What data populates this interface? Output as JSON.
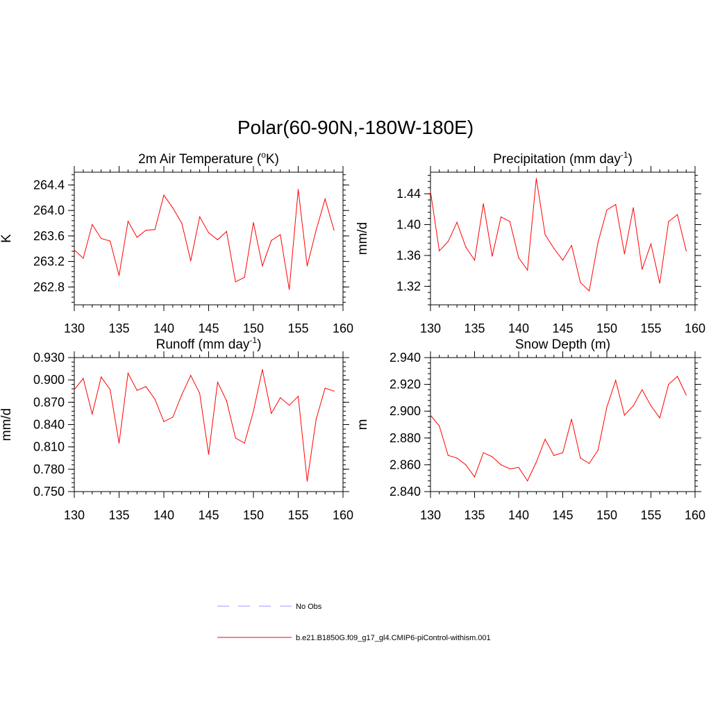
{
  "figure": {
    "title": "Polar(60-90N,-180W-180E)"
  },
  "chart_data": [
    {
      "type": "line",
      "title": "2m Air Temperature (",
      "title_sup": "o",
      "title_tail": "K)",
      "ylabel": "K",
      "xlabel": "",
      "xlim": [
        130,
        160
      ],
      "ylim": [
        262.52,
        264.6
      ],
      "x_ticks": [
        "130",
        "135",
        "140",
        "145",
        "150",
        "155",
        "160"
      ],
      "y_ticks": [
        262.8,
        263.2,
        263.6,
        264.0,
        264.4
      ],
      "y_tick_labels": [
        "262.8",
        "263.2",
        "263.6",
        "264.0",
        "264.4"
      ],
      "y_minor_step": 0.08,
      "grid": false,
      "series": [
        {
          "name": "b.e21.B1850G.f09_g17_gl4.CMIP6-piControl-withism.001",
          "color": "#ff0000",
          "x": [
            130,
            131,
            132,
            133,
            134,
            135,
            136,
            137,
            138,
            139,
            140,
            141,
            142,
            143,
            144,
            145,
            146,
            147,
            148,
            149,
            150,
            151,
            152,
            153,
            154,
            155,
            156,
            157,
            158,
            159
          ],
          "y": [
            263.38,
            263.25,
            263.78,
            263.56,
            263.52,
            262.98,
            263.83,
            263.58,
            263.69,
            263.7,
            264.24,
            264.04,
            263.8,
            263.21,
            263.9,
            263.65,
            263.54,
            263.67,
            262.88,
            262.95,
            263.81,
            263.13,
            263.53,
            263.62,
            262.76,
            264.33,
            263.13,
            263.69,
            264.18,
            263.69
          ]
        }
      ]
    },
    {
      "type": "line",
      "title": "Precipitation (mm day",
      "title_sup": "-1",
      "title_tail": ")",
      "ylabel": "mm/d",
      "xlabel": "",
      "xlim": [
        130,
        160
      ],
      "ylim": [
        1.296,
        1.468
      ],
      "x_ticks": [
        "130",
        "135",
        "140",
        "145",
        "150",
        "155",
        "160"
      ],
      "y_ticks": [
        1.32,
        1.36,
        1.4,
        1.44
      ],
      "y_tick_labels": [
        "1.32",
        "1.36",
        "1.40",
        "1.44"
      ],
      "y_minor_step": 0.008,
      "grid": false,
      "series": [
        {
          "name": "b.e21.B1850G.f09_g17_gl4.CMIP6-piControl-withism.001",
          "color": "#ff0000",
          "x": [
            130,
            131,
            132,
            133,
            134,
            135,
            136,
            137,
            138,
            139,
            140,
            141,
            142,
            143,
            144,
            145,
            146,
            147,
            148,
            149,
            150,
            151,
            152,
            153,
            154,
            155,
            156,
            157,
            158,
            159
          ],
          "y": [
            1.443,
            1.366,
            1.378,
            1.403,
            1.371,
            1.354,
            1.427,
            1.359,
            1.41,
            1.404,
            1.357,
            1.341,
            1.46,
            1.387,
            1.369,
            1.354,
            1.373,
            1.325,
            1.314,
            1.377,
            1.419,
            1.426,
            1.362,
            1.422,
            1.342,
            1.375,
            1.324,
            1.404,
            1.413,
            1.366
          ]
        }
      ]
    },
    {
      "type": "line",
      "title": "Runoff (mm day",
      "title_sup": "-1",
      "title_tail": ")",
      "ylabel": "mm/d",
      "xlabel": "",
      "xlim": [
        130,
        160
      ],
      "ylim": [
        0.75,
        0.93
      ],
      "x_ticks": [
        "130",
        "135",
        "140",
        "145",
        "150",
        "155",
        "160"
      ],
      "y_ticks": [
        0.75,
        0.78,
        0.81,
        0.84,
        0.87,
        0.9,
        0.93
      ],
      "y_tick_labels": [
        "0.750",
        "0.780",
        "0.810",
        "0.840",
        "0.870",
        "0.900",
        "0.930"
      ],
      "y_minor_step": 0.006,
      "grid": false,
      "series": [
        {
          "name": "b.e21.B1850G.f09_g17_gl4.CMIP6-piControl-withism.001",
          "color": "#ff0000",
          "x": [
            130,
            131,
            132,
            133,
            134,
            135,
            136,
            137,
            138,
            139,
            140,
            141,
            142,
            143,
            144,
            145,
            146,
            147,
            148,
            149,
            150,
            151,
            152,
            153,
            154,
            155,
            156,
            157,
            158,
            159
          ],
          "y": [
            0.887,
            0.902,
            0.854,
            0.904,
            0.887,
            0.815,
            0.909,
            0.886,
            0.891,
            0.874,
            0.844,
            0.85,
            0.88,
            0.906,
            0.882,
            0.8,
            0.897,
            0.872,
            0.822,
            0.815,
            0.858,
            0.914,
            0.855,
            0.876,
            0.866,
            0.878,
            0.764,
            0.847,
            0.889,
            0.885
          ]
        }
      ]
    },
    {
      "type": "line",
      "title": "Snow Depth (m)",
      "title_sup": "",
      "title_tail": "",
      "ylabel": "m",
      "xlabel": "",
      "xlim": [
        130,
        160
      ],
      "ylim": [
        2.84,
        2.94
      ],
      "x_ticks": [
        "130",
        "135",
        "140",
        "145",
        "150",
        "155",
        "160"
      ],
      "y_ticks": [
        2.84,
        2.86,
        2.88,
        2.9,
        2.92,
        2.94
      ],
      "y_tick_labels": [
        "2.840",
        "2.860",
        "2.880",
        "2.900",
        "2.920",
        "2.940"
      ],
      "y_minor_step": 0.004,
      "grid": false,
      "series": [
        {
          "name": "b.e21.B1850G.f09_g17_gl4.CMIP6-piControl-withism.001",
          "color": "#ff0000",
          "x": [
            130,
            131,
            132,
            133,
            134,
            135,
            136,
            137,
            138,
            139,
            140,
            141,
            142,
            143,
            144,
            145,
            146,
            147,
            148,
            149,
            150,
            151,
            152,
            153,
            154,
            155,
            156,
            157,
            158,
            159
          ],
          "y": [
            2.897,
            2.889,
            2.867,
            2.865,
            2.86,
            2.851,
            2.869,
            2.866,
            2.86,
            2.857,
            2.858,
            2.848,
            2.862,
            2.879,
            2.867,
            2.869,
            2.894,
            2.865,
            2.861,
            2.871,
            2.903,
            2.923,
            2.897,
            2.904,
            2.916,
            2.904,
            2.895,
            2.92,
            2.926,
            2.912
          ]
        }
      ]
    }
  ],
  "legend": {
    "items": [
      {
        "label": "No Obs",
        "color": "#9999ff",
        "style": "dashed"
      },
      {
        "label": "b.e21.B1850G.f09_g17_gl4.CMIP6-piControl-withism.001",
        "color": "#ff0000",
        "style": "solid"
      }
    ]
  }
}
